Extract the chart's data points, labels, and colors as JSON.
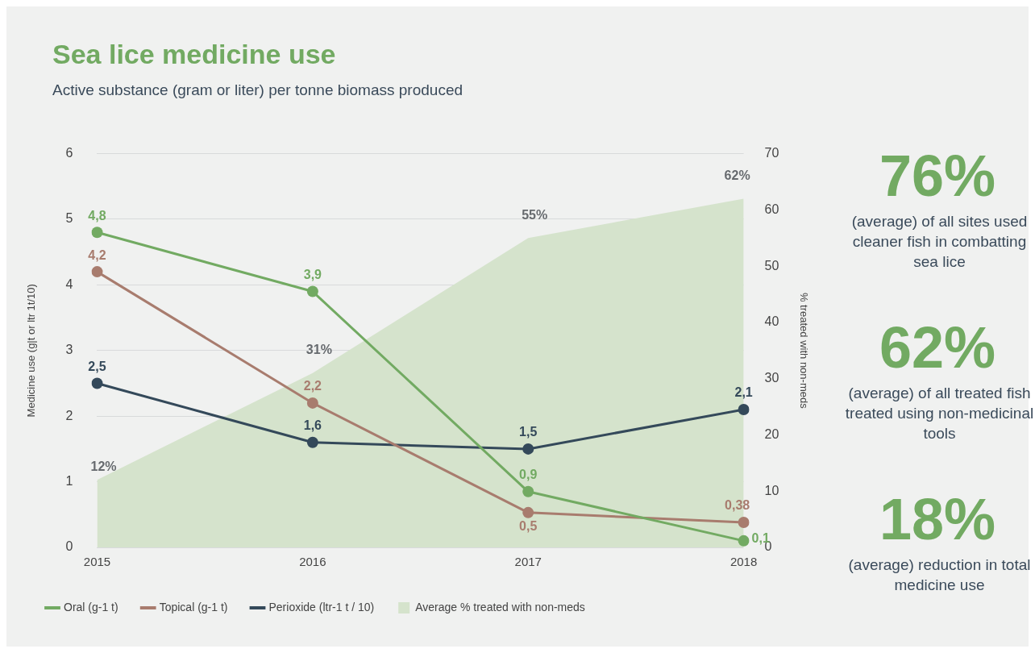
{
  "chart_data": [
    {
      "type": "line",
      "title": "Sea lice medicine use",
      "subtitle": "Active substance (gram or liter) per tonne biomass produced",
      "ylabel": "Medicine use (g|t or ltr 1t/10)",
      "y2label": "% treated with non-meds",
      "categories": [
        "2015",
        "2016",
        "2017",
        "2018"
      ],
      "series": [
        {
          "name": "Oral (g-1 t)",
          "color": "#72aa62",
          "values": [
            4.8,
            3.9,
            0.85,
            0.1
          ],
          "value_labels": [
            "4,8",
            "3,9",
            "0,9",
            "0,1"
          ]
        },
        {
          "name": "Topical (g-1 t)",
          "color": "#a87c6e",
          "values": [
            4.2,
            2.2,
            0.53,
            0.38
          ],
          "value_labels": [
            "4,2",
            "2,2",
            "0,5",
            "0,38"
          ]
        },
        {
          "name": "Perioxide (ltr-1 t / 10)",
          "color": "#34495a",
          "values": [
            2.5,
            1.6,
            1.5,
            2.1
          ],
          "value_labels": [
            "2,5",
            "1,6",
            "1,5",
            "2,1"
          ]
        },
        {
          "name": "Average % treated with non-meds",
          "type": "area",
          "axis": "y2",
          "marker": "none",
          "color": "#d5e3cc",
          "values": [
            12,
            31,
            55,
            62
          ],
          "value_labels": [
            "12%",
            "31%",
            "55%",
            "62%"
          ]
        }
      ],
      "ylim": [
        0,
        6
      ],
      "yticks": [
        0,
        1,
        2,
        3,
        4,
        5,
        6
      ],
      "y2lim": [
        0,
        70
      ],
      "y2ticks": [
        0,
        10,
        20,
        30,
        40,
        50,
        60,
        70
      ],
      "grid": "y",
      "legend": "bottom",
      "marker": "circle",
      "line_style": "solid"
    },
    {
      "type": "other",
      "annotations": [
        "76%",
        "(average) of all sites used cleaner fish in combatting sea lice",
        "62%",
        "(average) of all treated fish treated using non-medicinal tools",
        "18%",
        "(average) reduction in total medicine use"
      ]
    }
  ]
}
